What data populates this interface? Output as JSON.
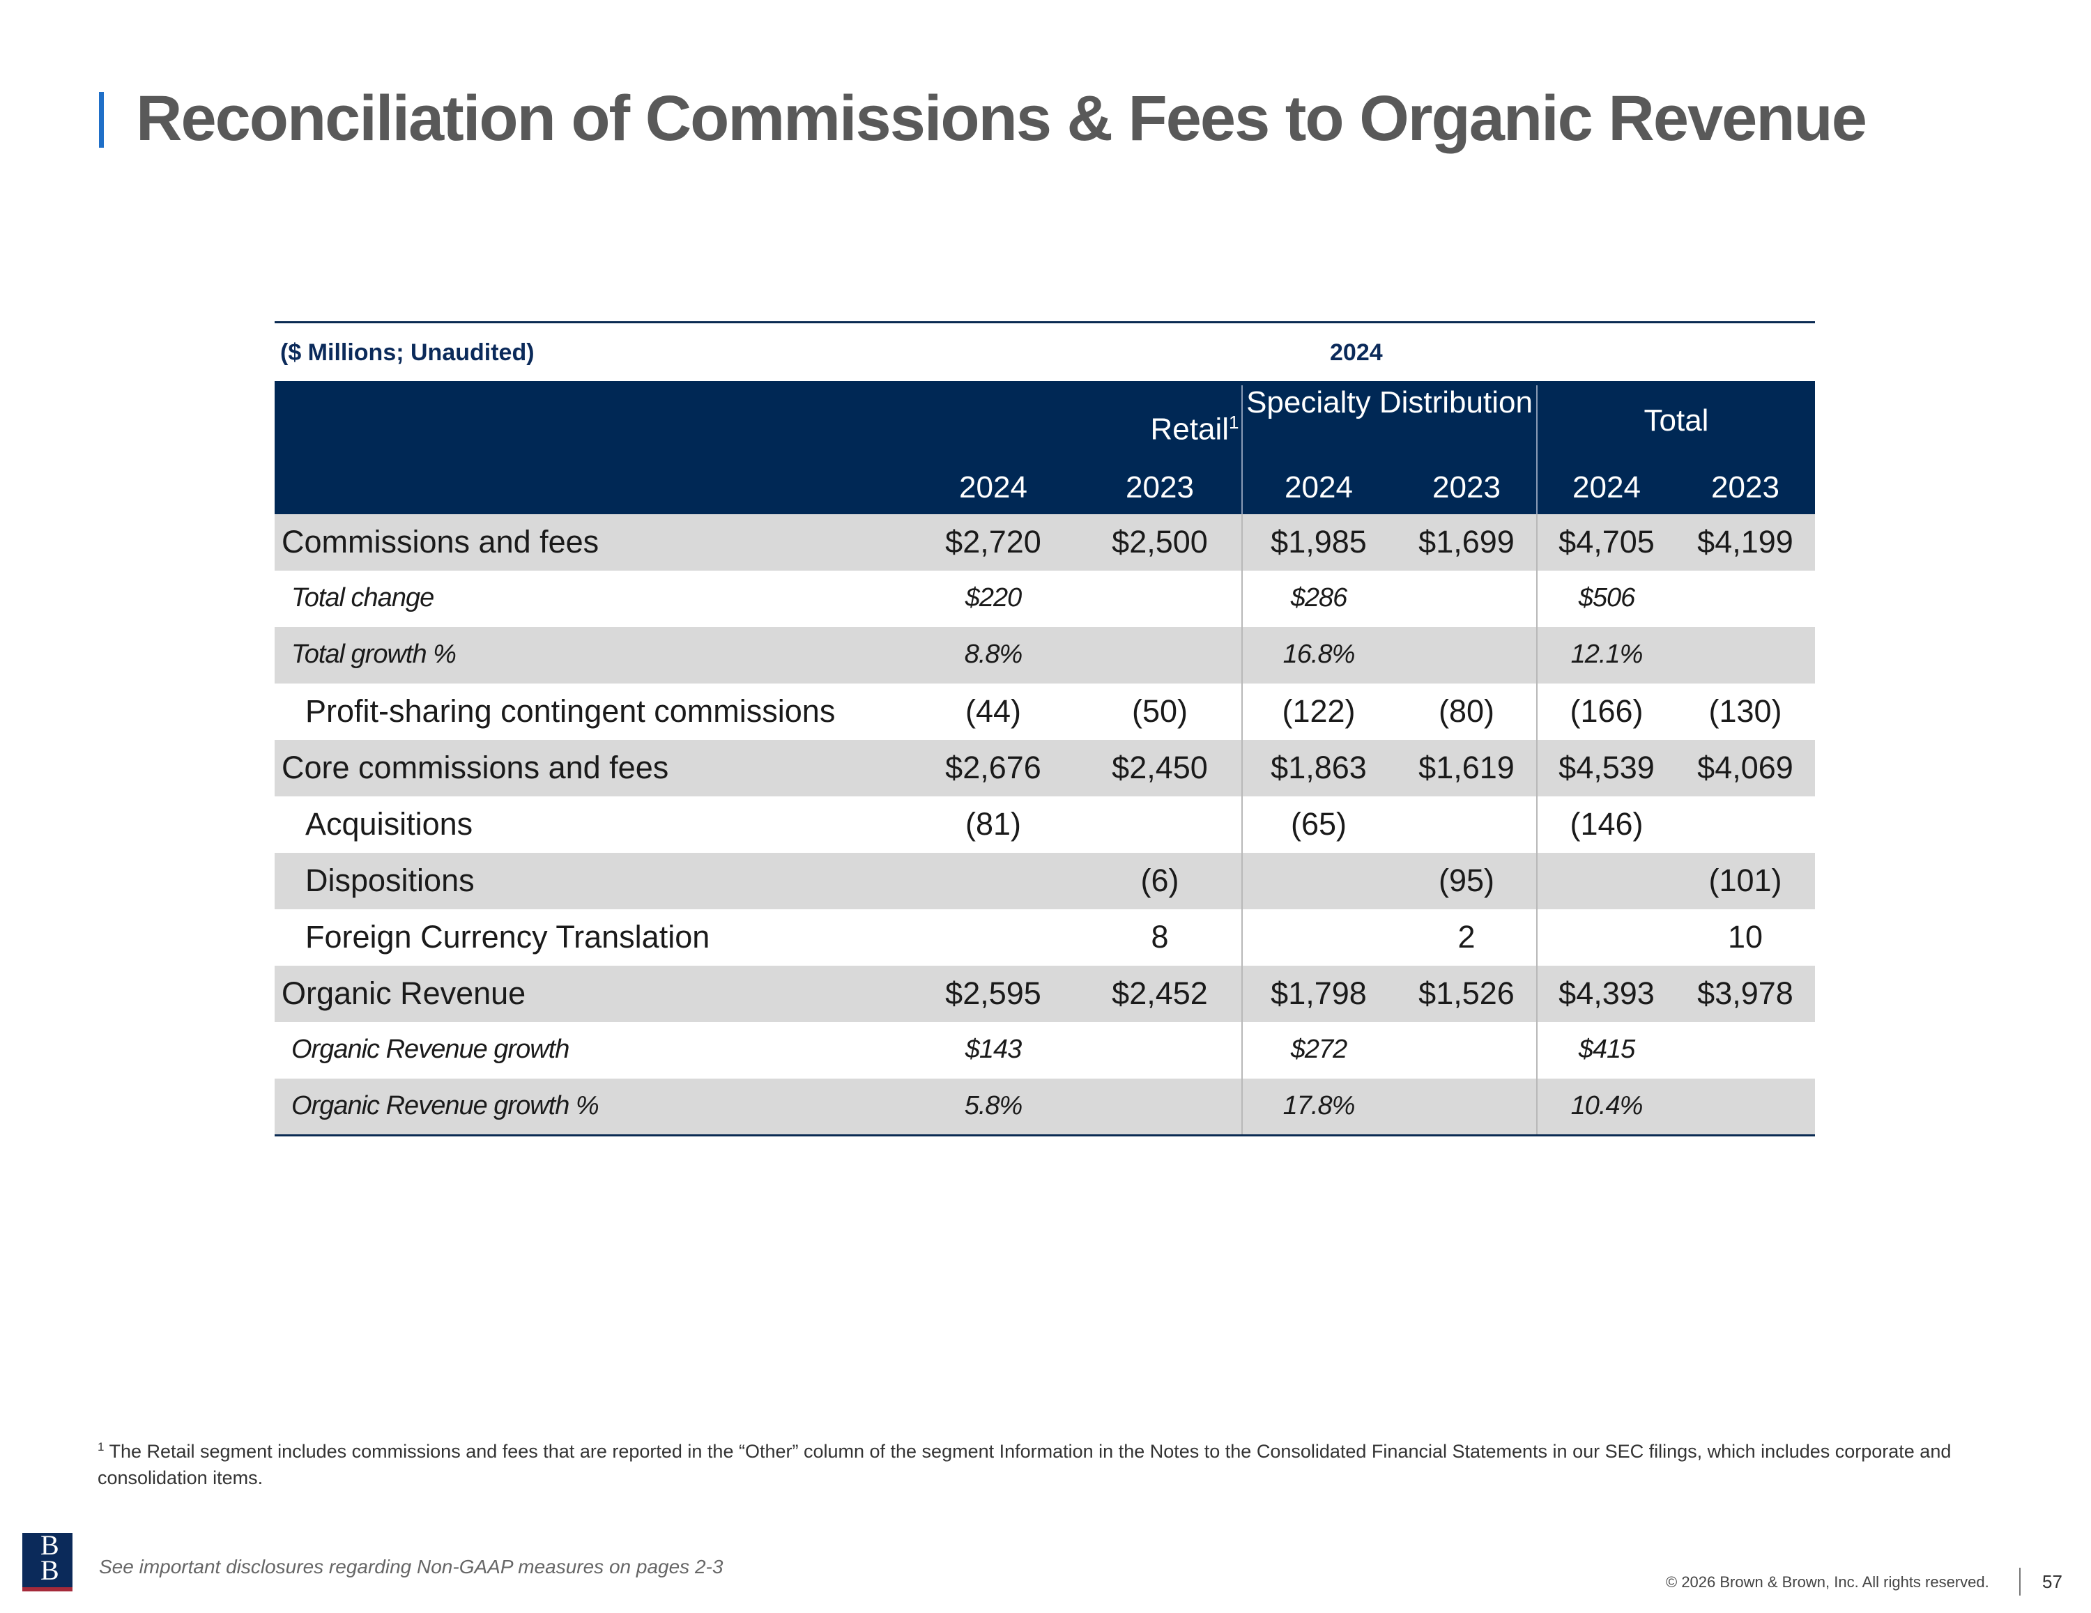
{
  "title": "Reconciliation of Commissions & Fees to Organic Revenue",
  "table": {
    "unit_label": "($ Millions; Unaudited)",
    "year_label": "2024",
    "groups": [
      {
        "label": "Retail",
        "sup": "1"
      },
      {
        "label": "Specialty Distribution",
        "sup": ""
      },
      {
        "label": "Total",
        "sup": ""
      }
    ],
    "years": [
      "2024",
      "2023",
      "2024",
      "2023",
      "2024",
      "2023"
    ],
    "rows": [
      {
        "label": "Commissions and fees",
        "style": "main",
        "shade": true,
        "values": [
          "$2,720",
          "$2,500",
          "$1,985",
          "$1,699",
          "$4,705",
          "$4,199"
        ]
      },
      {
        "label": "Total change",
        "style": "italic",
        "shade": false,
        "values": [
          "$220",
          "",
          "$286",
          "",
          "$506",
          ""
        ]
      },
      {
        "label": "Total growth %",
        "style": "italic",
        "shade": true,
        "values": [
          "8.8%",
          "",
          "16.8%",
          "",
          "12.1%",
          ""
        ]
      },
      {
        "label": "Profit-sharing contingent commissions",
        "style": "indent",
        "shade": false,
        "values": [
          "(44)",
          "(50)",
          "(122)",
          "(80)",
          "(166)",
          "(130)"
        ]
      },
      {
        "label": "Core commissions and fees",
        "style": "main",
        "shade": true,
        "values": [
          "$2,676",
          "$2,450",
          "$1,863",
          "$1,619",
          "$4,539",
          "$4,069"
        ]
      },
      {
        "label": "Acquisitions",
        "style": "indent",
        "shade": false,
        "values": [
          "(81)",
          "",
          "(65)",
          "",
          "(146)",
          ""
        ]
      },
      {
        "label": "Dispositions",
        "style": "indent",
        "shade": true,
        "values": [
          "",
          "(6)",
          "",
          "(95)",
          "",
          "(101)"
        ]
      },
      {
        "label": "Foreign Currency Translation",
        "style": "indent",
        "shade": false,
        "values": [
          "",
          "8",
          "",
          "2",
          "",
          "10"
        ]
      },
      {
        "label": "Organic Revenue",
        "style": "main",
        "shade": true,
        "values": [
          "$2,595",
          "$2,452",
          "$1,798",
          "$1,526",
          "$4,393",
          "$3,978"
        ]
      },
      {
        "label": "Organic Revenue growth",
        "style": "italic",
        "shade": false,
        "values": [
          "$143",
          "",
          "$272",
          "",
          "$415",
          ""
        ]
      },
      {
        "label": "Organic Revenue growth %",
        "style": "italic",
        "shade": true,
        "values": [
          "5.8%",
          "",
          "17.8%",
          "",
          "10.4%",
          ""
        ]
      }
    ]
  },
  "footnote": {
    "marker": "1",
    "text": "The Retail segment includes commissions and fees that are reported in the “Other” column of the segment Information in the Notes to the Consolidated Financial Statements in our SEC filings, which includes corporate and consolidation items."
  },
  "logo_text": "BB",
  "disclosure": "See important disclosures regarding Non-GAAP measures on pages 2-3",
  "copyright": "© 2026 Brown & Brown, Inc. All rights reserved.",
  "page_number": "57",
  "colors": {
    "header_bg": "#002855",
    "shade": "#d9d9d9",
    "accent": "#1f6fc8",
    "title": "#595959"
  }
}
